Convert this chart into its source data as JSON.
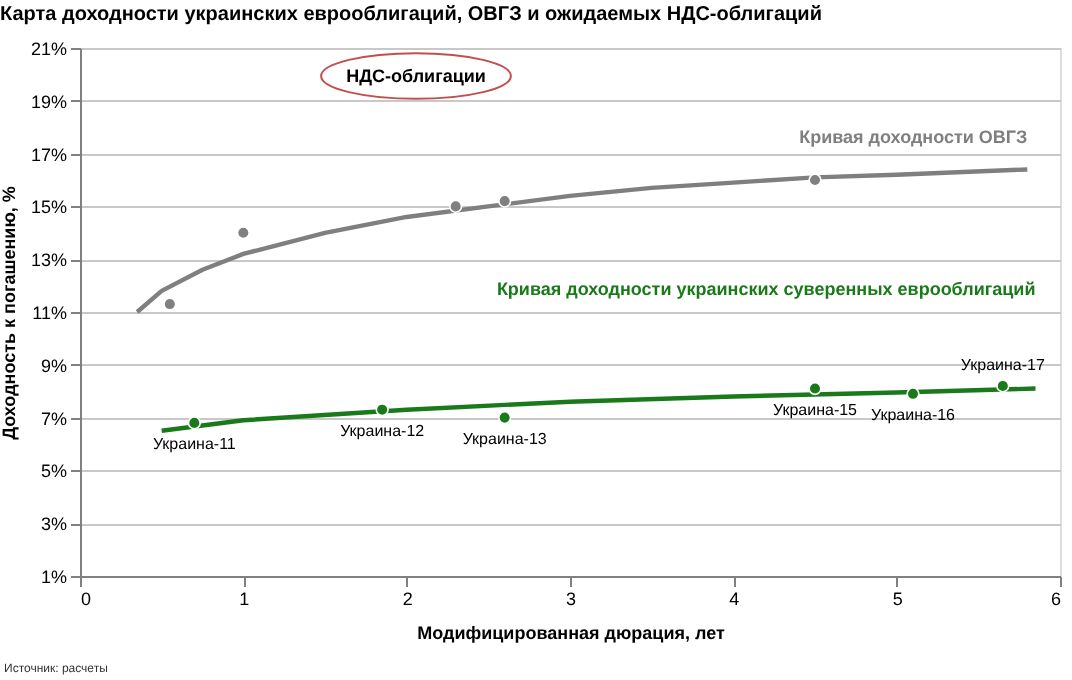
{
  "chart_data": {
    "type": "scatter",
    "title": "Карта доходности украинских еврооблигаций, ОВГЗ и ожидаемых НДС-облигаций",
    "xlabel": "Модифицированная дюрация, лет",
    "ylabel": "Доходность к погашению, %",
    "series": [
      {
        "marker": "circle",
        "color": "#808080",
        "x": [
          0.55,
          1.0,
          2.3,
          2.6,
          4.5
        ],
        "values": [
          11.3,
          14.0,
          15.0,
          15.2,
          16.0
        ]
      },
      {
        "type": "line",
        "marker": "none",
        "name": "Кривая доходности ОВГЗ",
        "color": "#7f7f7f",
        "x": [
          0.35,
          0.5,
          0.75,
          1,
          1.5,
          2,
          2.5,
          3,
          3.5,
          4,
          4.5,
          5,
          5.8
        ],
        "values": [
          11.0,
          11.8,
          12.6,
          13.2,
          14.0,
          14.6,
          15.0,
          15.4,
          15.7,
          15.9,
          16.1,
          16.2,
          16.4
        ]
      },
      {
        "marker": "circle",
        "color": "#1a7a1a",
        "x": [
          0.7,
          1.85,
          2.6,
          4.5,
          5.1,
          5.65
        ],
        "values": [
          6.8,
          7.3,
          7.0,
          8.1,
          7.9,
          8.2
        ]
      },
      {
        "type": "line",
        "marker": "none",
        "name": "Кривая доходности украинских суверенных еврооблигаций",
        "color": "#1a7a1a",
        "x": [
          0.5,
          1,
          2,
          3,
          4,
          5,
          5.85
        ],
        "values": [
          6.5,
          6.9,
          7.3,
          7.6,
          7.8,
          7.95,
          8.1
        ]
      }
    ],
    "annotations": [
      "НДС-облигации",
      "Источник: расчеты",
      {
        "text": "Украина-11",
        "x": 0.7,
        "y": 6.8
      },
      {
        "text": "Украина-12",
        "x": 1.85,
        "y": 7.3
      },
      {
        "text": "Украина-13",
        "x": 2.6,
        "y": 7.0
      },
      {
        "text": "Украина-15",
        "x": 4.5,
        "y": 8.1
      },
      {
        "text": "Украина-16",
        "x": 5.1,
        "y": 7.9
      },
      {
        "text": "Украина-17",
        "x": 5.65,
        "y": 8.2
      }
    ],
    "xlim": [
      0,
      6
    ],
    "xticks": [
      0,
      1,
      2,
      3,
      4,
      5,
      6
    ],
    "ylim": [
      1,
      21
    ],
    "yticks": [
      {
        "value": 1,
        "label": "1%"
      },
      {
        "value": 3,
        "label": "3%"
      },
      {
        "value": 5,
        "label": "5%"
      },
      {
        "value": 7,
        "label": "7%"
      },
      {
        "value": 9,
        "label": "9%"
      },
      {
        "value": 11,
        "label": "11%"
      },
      {
        "value": 13,
        "label": "13%"
      },
      {
        "value": 15,
        "label": "15%"
      },
      {
        "value": 17,
        "label": "17%"
      },
      {
        "value": 19,
        "label": "19%"
      },
      {
        "value": 21,
        "label": "21%"
      }
    ],
    "grid": "y",
    "line_style": "solid"
  }
}
